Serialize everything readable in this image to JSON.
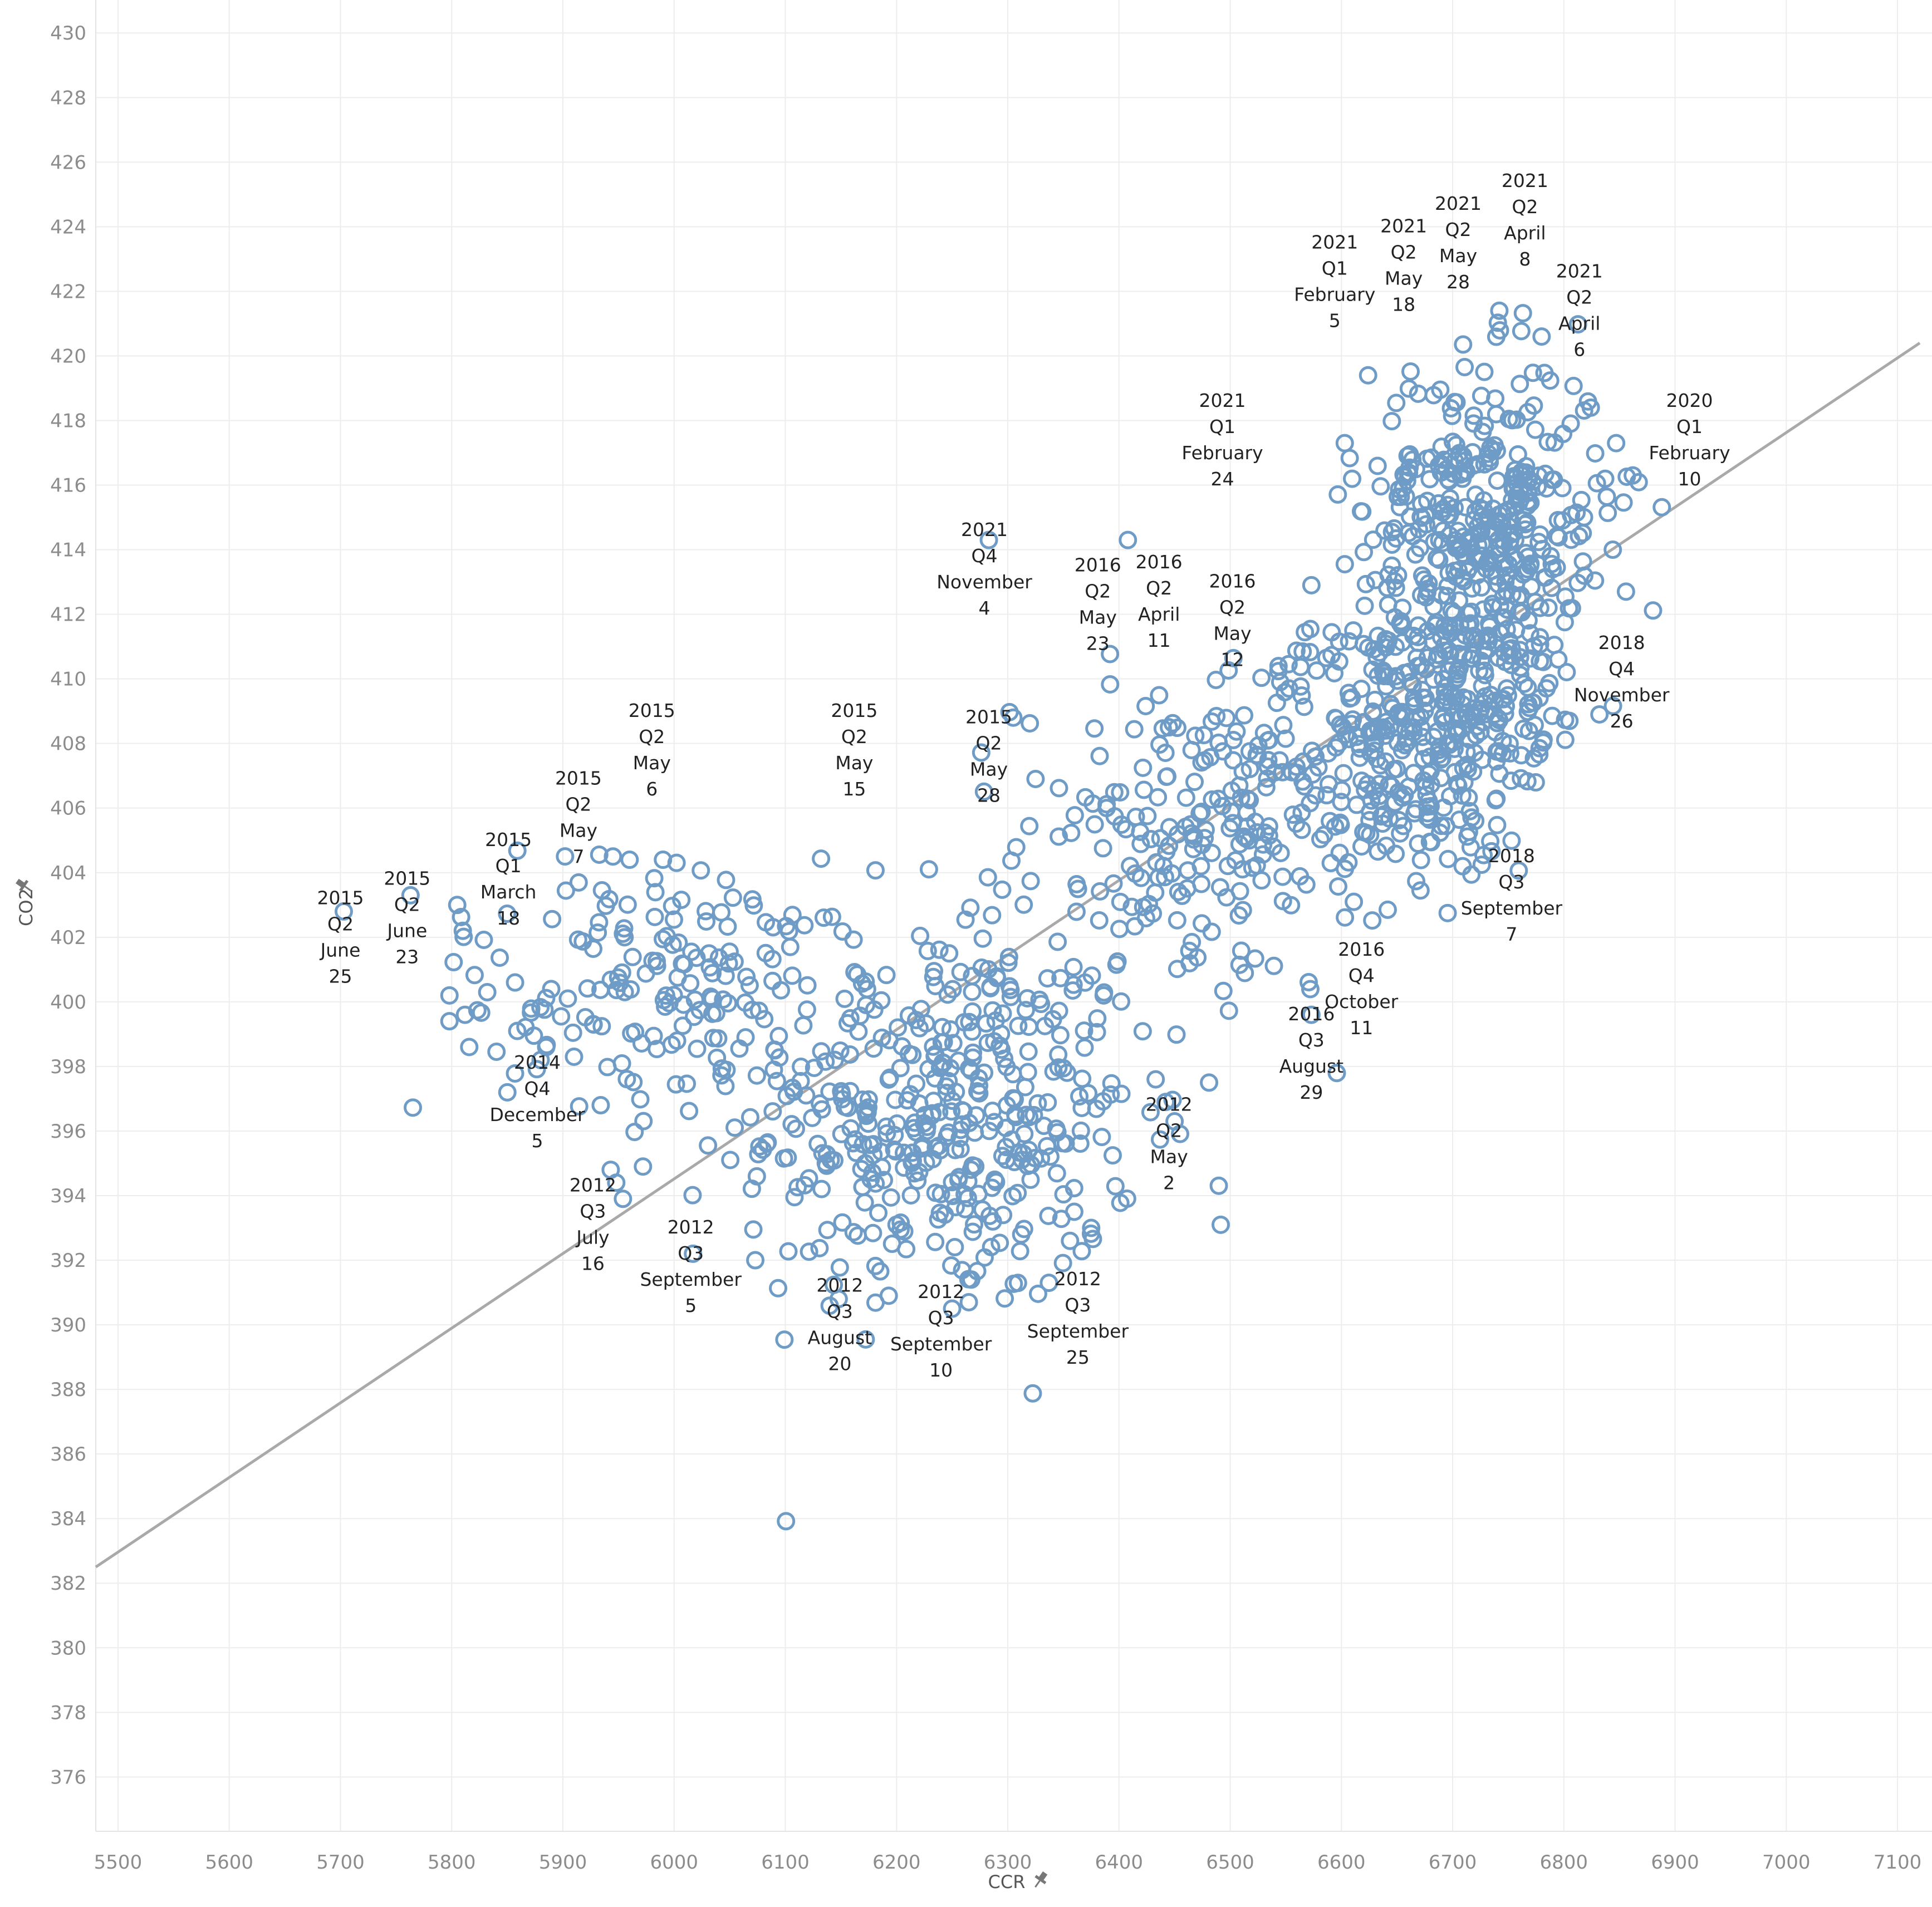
{
  "chart_data": {
    "type": "scatter",
    "title": "",
    "xlabel": "CCR",
    "ylabel": "CO2",
    "xlim": [
      5480,
      7120
    ],
    "ylim": [
      374.8,
      430.4
    ],
    "xticks": [
      5500,
      5600,
      5700,
      5800,
      5900,
      6000,
      6100,
      6200,
      6300,
      6400,
      6500,
      6600,
      6700,
      6800,
      6900,
      7000,
      7100
    ],
    "yticks": [
      376,
      378,
      380,
      382,
      384,
      386,
      388,
      390,
      392,
      394,
      396,
      398,
      400,
      402,
      404,
      406,
      408,
      410,
      412,
      414,
      416,
      418,
      420,
      422,
      424,
      426,
      428,
      430
    ],
    "grid": true,
    "marker": "open-circle",
    "point_color": "#6e9cc6",
    "trend_color": "#a9a9a9",
    "trend_line": {
      "x": [
        5480,
        7120
      ],
      "y": [
        382.5,
        420.4
      ]
    },
    "clusters": [
      {
        "cx": 6240,
        "cy": 396.5,
        "sx": 90,
        "sy": 3.0,
        "n": 420
      },
      {
        "cx": 6030,
        "cy": 400.5,
        "sx": 70,
        "sy": 1.8,
        "n": 120
      },
      {
        "cx": 5890,
        "cy": 400.5,
        "sx": 60,
        "sy": 2.0,
        "n": 45
      },
      {
        "cx": 6480,
        "cy": 405.0,
        "sx": 85,
        "sy": 2.4,
        "n": 220
      },
      {
        "cx": 6640,
        "cy": 408.0,
        "sx": 60,
        "sy": 2.0,
        "n": 200
      },
      {
        "cx": 6720,
        "cy": 411.0,
        "sx": 50,
        "sy": 2.6,
        "n": 320
      },
      {
        "cx": 6730,
        "cy": 415.5,
        "sx": 55,
        "sy": 2.2,
        "n": 260
      }
    ],
    "points": [
      {
        "x": 5703,
        "y": 402.8
      },
      {
        "x": 5763,
        "y": 403.3
      },
      {
        "x": 5805,
        "y": 403.0
      },
      {
        "x": 5810,
        "y": 402.2
      },
      {
        "x": 5832,
        "y": 400.3
      },
      {
        "x": 5857,
        "y": 400.6
      },
      {
        "x": 5798,
        "y": 399.4
      },
      {
        "x": 5812,
        "y": 399.6
      },
      {
        "x": 5859,
        "y": 399.1
      },
      {
        "x": 5885,
        "y": 398.6
      },
      {
        "x": 5880,
        "y": 398.2
      },
      {
        "x": 5910,
        "y": 398.3
      },
      {
        "x": 5945,
        "y": 404.5
      },
      {
        "x": 5960,
        "y": 404.4
      },
      {
        "x": 5990,
        "y": 404.4
      },
      {
        "x": 5934,
        "y": 396.8
      },
      {
        "x": 5943,
        "y": 394.8
      },
      {
        "x": 5948,
        "y": 394.4
      },
      {
        "x": 5954,
        "y": 393.9
      },
      {
        "x": 5972,
        "y": 394.9
      },
      {
        "x": 6017,
        "y": 392.2
      },
      {
        "x": 6073,
        "y": 392.0
      },
      {
        "x": 6283,
        "y": 414.3
      },
      {
        "x": 6408,
        "y": 414.3
      },
      {
        "x": 6442,
        "y": 396.9
      },
      {
        "x": 6481,
        "y": 397.5
      },
      {
        "x": 6573,
        "y": 399.6
      },
      {
        "x": 6573,
        "y": 412.9
      },
      {
        "x": 6603,
        "y": 417.3
      },
      {
        "x": 6624,
        "y": 419.4
      },
      {
        "x": 6709,
        "y": 404.2
      },
      {
        "x": 6742,
        "y": 421.4
      },
      {
        "x": 6780,
        "y": 420.6
      },
      {
        "x": 6790,
        "y": 413.4
      },
      {
        "x": 6862,
        "y": 416.3
      },
      {
        "x": 6832,
        "y": 408.9
      },
      {
        "x": 6805,
        "y": 408.7
      },
      {
        "x": 6847,
        "y": 417.3
      },
      {
        "x": 6844,
        "y": 414.0
      },
      {
        "x": 6148,
        "y": 390.8
      },
      {
        "x": 6193,
        "y": 390.9
      },
      {
        "x": 6265,
        "y": 390.7
      },
      {
        "x": 6250,
        "y": 390.5
      },
      {
        "x": 6337,
        "y": 391.3
      },
      {
        "x": 6375,
        "y": 393.0
      },
      {
        "x": 6356,
        "y": 392.6
      },
      {
        "x": 6450,
        "y": 396.3
      },
      {
        "x": 6433,
        "y": 397.6
      },
      {
        "x": 6545,
        "y": 409.9
      },
      {
        "x": 6553,
        "y": 409.7
      },
      {
        "x": 6325,
        "y": 406.9
      },
      {
        "x": 6305,
        "y": 408.8
      }
    ],
    "annotations": [
      {
        "lines": [
          "2015",
          "Q2",
          "June",
          "25"
        ],
        "x": 5700,
        "y": 402.0
      },
      {
        "lines": [
          "2015",
          "Q2",
          "June",
          "23"
        ],
        "x": 5760,
        "y": 402.6
      },
      {
        "lines": [
          "2015",
          "Q1",
          "March",
          "18"
        ],
        "x": 5851,
        "y": 403.8
      },
      {
        "lines": [
          "2015",
          "Q2",
          "May",
          "7"
        ],
        "x": 5914,
        "y": 405.7
      },
      {
        "lines": [
          "2015",
          "Q2",
          "May",
          "6"
        ],
        "x": 5980,
        "y": 407.8
      },
      {
        "lines": [
          "2015",
          "Q2",
          "May",
          "15"
        ],
        "x": 6162,
        "y": 407.8
      },
      {
        "lines": [
          "2015",
          "Q2",
          "May",
          "28"
        ],
        "x": 6283,
        "y": 407.6
      },
      {
        "lines": [
          "2021",
          "Q4",
          "November",
          "4"
        ],
        "x": 6279,
        "y": 413.4
      },
      {
        "lines": [
          "2016",
          "Q2",
          "May",
          "23"
        ],
        "x": 6381,
        "y": 412.3
      },
      {
        "lines": [
          "2016",
          "Q2",
          "April",
          "11"
        ],
        "x": 6436,
        "y": 412.4
      },
      {
        "lines": [
          "2016",
          "Q2",
          "May",
          "12"
        ],
        "x": 6502,
        "y": 411.8
      },
      {
        "lines": [
          "2021",
          "Q1",
          "February",
          "24"
        ],
        "x": 6493,
        "y": 417.4
      },
      {
        "lines": [
          "2021",
          "Q1",
          "February",
          "5"
        ],
        "x": 6594,
        "y": 422.3
      },
      {
        "lines": [
          "2021",
          "Q2",
          "May",
          "18"
        ],
        "x": 6656,
        "y": 422.8
      },
      {
        "lines": [
          "2021",
          "Q2",
          "May",
          "28"
        ],
        "x": 6705,
        "y": 423.5
      },
      {
        "lines": [
          "2021",
          "Q2",
          "April",
          "8"
        ],
        "x": 6765,
        "y": 424.2
      },
      {
        "lines": [
          "2021",
          "Q2",
          "April",
          "6"
        ],
        "x": 6814,
        "y": 421.4
      },
      {
        "lines": [
          "2020",
          "Q1",
          "February",
          "10"
        ],
        "x": 6913,
        "y": 417.4
      },
      {
        "lines": [
          "2018",
          "Q4",
          "November",
          "26"
        ],
        "x": 6852,
        "y": 409.9
      },
      {
        "lines": [
          "2018",
          "Q3",
          "September",
          "7"
        ],
        "x": 6753,
        "y": 403.3
      },
      {
        "lines": [
          "2016",
          "Q4",
          "October",
          "11"
        ],
        "x": 6618,
        "y": 400.4
      },
      {
        "lines": [
          "2016",
          "Q3",
          "August",
          "29"
        ],
        "x": 6573,
        "y": 398.4
      },
      {
        "lines": [
          "2014",
          "Q4",
          "December",
          "5"
        ],
        "x": 5877,
        "y": 396.9
      },
      {
        "lines": [
          "2012",
          "Q2",
          "May",
          "2"
        ],
        "x": 6445,
        "y": 395.6
      },
      {
        "lines": [
          "2012",
          "Q3",
          "July",
          "16"
        ],
        "x": 5927,
        "y": 393.1
      },
      {
        "lines": [
          "2012",
          "Q3",
          "September",
          "5"
        ],
        "x": 6015,
        "y": 391.8
      },
      {
        "lines": [
          "2012",
          "Q3",
          "August",
          "20"
        ],
        "x": 6149,
        "y": 390.0
      },
      {
        "lines": [
          "2012",
          "Q3",
          "September",
          "10"
        ],
        "x": 6240,
        "y": 389.8
      },
      {
        "lines": [
          "2012",
          "Q3",
          "September",
          "25"
        ],
        "x": 6363,
        "y": 390.2
      }
    ]
  }
}
